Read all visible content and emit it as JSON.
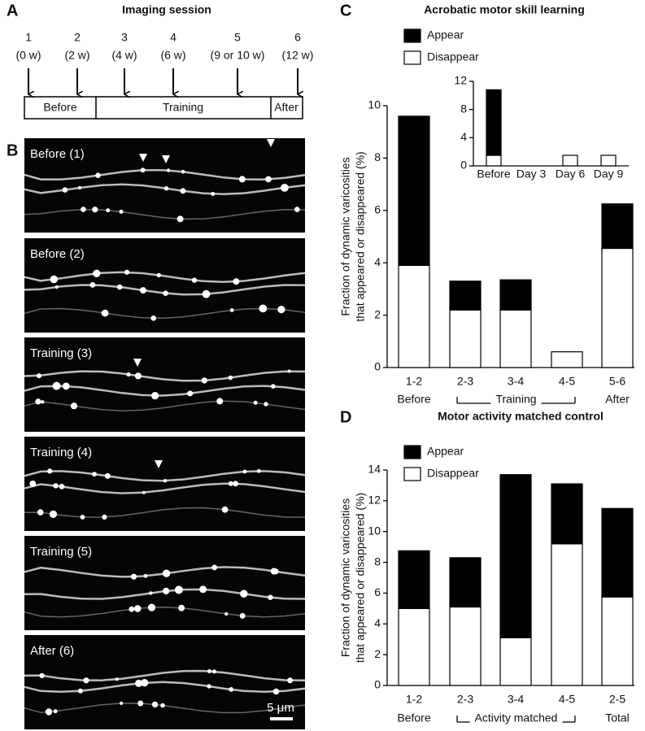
{
  "figure": {
    "panel_labels": [
      "A",
      "B",
      "C",
      "D"
    ]
  },
  "panel_a": {
    "title": "Imaging session",
    "sessions": [
      {
        "number": "1",
        "time": "(0 w)"
      },
      {
        "number": "2",
        "time": "(2 w)"
      },
      {
        "number": "3",
        "time": "(4 w)"
      },
      {
        "number": "4",
        "time": "(6 w)"
      },
      {
        "number": "5",
        "time": "(9 or 10 w)"
      },
      {
        "number": "6",
        "time": "(12 w)"
      }
    ],
    "phases": [
      "Before",
      "Training",
      "After"
    ]
  },
  "panel_b": {
    "images": [
      "Before (1)",
      "Before (2)",
      "Training (3)",
      "Training (4)",
      "Training (5)",
      "After (6)"
    ],
    "scale_bar": "5 μm"
  },
  "chart_data": [
    {
      "type": "bar",
      "stacked": true,
      "title": "Acrobatic motor skill learning",
      "ylabel": [
        "Fraction of dynamic varicosities",
        "that appeared or disappeared (%)"
      ],
      "categories": [
        "1-2",
        "2-3",
        "3-4",
        "4-5",
        "5-6"
      ],
      "sublabels": [
        "Before",
        null,
        null,
        null,
        "After"
      ],
      "group_label": "Training",
      "series": [
        {
          "name": "Disappear",
          "color": "#ffffff",
          "values": [
            3.9,
            2.2,
            2.2,
            0.6,
            4.55
          ]
        },
        {
          "name": "Appear",
          "color": "#000000",
          "values": [
            5.7,
            1.1,
            1.15,
            0,
            1.7
          ]
        }
      ],
      "ylim": [
        0,
        10
      ],
      "yticks": [
        0,
        2,
        4,
        6,
        8,
        10
      ]
    },
    {
      "type": "bar",
      "stacked": true,
      "categories": [
        "Before",
        "Day 3",
        "Day 6",
        "Day 9"
      ],
      "series": [
        {
          "color": "#ffffff",
          "values": [
            1.5,
            0,
            1.5,
            1.5
          ]
        },
        {
          "color": "#000000",
          "values": [
            9.3,
            0,
            0,
            0
          ]
        }
      ],
      "ylim": [
        0,
        12
      ],
      "yticks": [
        0,
        4,
        8,
        12
      ]
    },
    {
      "type": "bar",
      "stacked": true,
      "title": "Motor activity matched control",
      "ylabel": [
        "Fraction of dynamic varicosities",
        "that appeared or disappeared (%)"
      ],
      "categories": [
        "1-2",
        "2-3",
        "3-4",
        "4-5",
        "2-5"
      ],
      "sublabels": [
        "Before",
        null,
        null,
        null,
        "Total"
      ],
      "group_label": "Activity matched",
      "series": [
        {
          "name": "Disappear",
          "color": "#ffffff",
          "values": [
            5.0,
            5.1,
            3.1,
            9.2,
            5.75
          ]
        },
        {
          "name": "Appear",
          "color": "#000000",
          "values": [
            3.75,
            3.2,
            10.6,
            3.9,
            5.75
          ]
        }
      ],
      "ylim": [
        0,
        14
      ],
      "yticks": [
        0,
        2,
        4,
        6,
        8,
        10,
        12,
        14
      ]
    }
  ]
}
